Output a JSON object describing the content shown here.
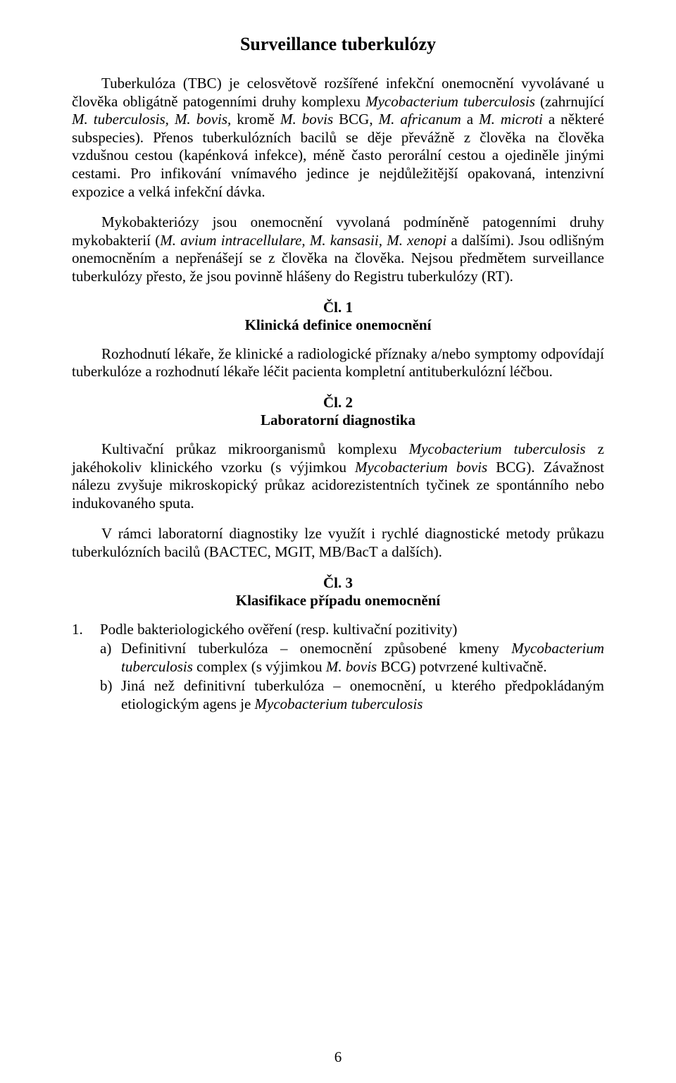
{
  "title": "Surveillance tuberkulózy",
  "paragraphs": {
    "p1_a": "Tuberkulóza (TBC) je celosvětově rozšířené infekční onemocnění vyvolávané u člověka obligátně patogenními druhy komplexu ",
    "p1_i1": "Mycobacterium tuberculosis",
    "p1_b": " (zahrnující ",
    "p1_i2": "M. tuberculosis, M. bovis,",
    "p1_c": " kromě ",
    "p1_i3": "M. bovis",
    "p1_d": " BCG, ",
    "p1_i4": "M. africanum",
    "p1_e": " a ",
    "p1_i5": "M. microti",
    "p1_f": " a některé subspecies). Přenos tuberkulózních bacilů se děje převážně z člověka na člověka vzdušnou cestou (kapénková infekce), méně často perorální cestou a ojediněle jinými cestami. Pro infikování vnímavého jedince je nejdůležitější opakovaná, intenzivní expozice a velká infekční dávka.",
    "p2_a": "Mykobakteriózy jsou onemocnění vyvolaná podmíněně patogenními druhy mykobakterií (",
    "p2_i1": "M. avium intracellulare, M. kansasii, M. xenopi",
    "p2_b": " a dalšími). Jsou odlišným onemocněním a nepřenášejí se z člověka na člověka. Nejsou předmětem surveillance tuberkulózy přesto, že jsou povinně hlášeny do Registru tuberkulózy (RT).",
    "p3": "Rozhodnutí lékaře, že klinické a radiologické příznaky a/nebo symptomy odpovídají tuberkulóze a rozhodnutí lékaře léčit pacienta kompletní antituberkulózní léčbou.",
    "p4_a": "Kultivační průkaz mikroorganismů komplexu ",
    "p4_i1": "Mycobacterium tuberculosis",
    "p4_b": " z jakéhokoliv klinického vzorku (s výjimkou ",
    "p4_i2": "Mycobacterium bovis",
    "p4_c": " BCG). Závažnost nálezu zvyšuje mikroskopický průkaz acidorezistentních tyčinek ze spontánního nebo indukovaného sputa.",
    "p5": "V rámci laboratorní diagnostiky lze využít i rychlé diagnostické metody průkazu tuberkulózních bacilů (BACTEC, MGIT, MB/BacT a dalších)."
  },
  "articles": {
    "a1_num": "Čl. 1",
    "a1_title": "Klinická definice onemocnění",
    "a2_num": "Čl. 2",
    "a2_title": "Laboratorní diagnostika",
    "a3_num": "Čl. 3",
    "a3_title": "Klasifikace případu onemocnění"
  },
  "list": {
    "l1_num": "1.",
    "l1_text": "Podle bakteriologického ověření (resp. kultivační pozitivity)",
    "l1a_letter": "a)",
    "l1a_a": "Definitivní tuberkulóza – onemocnění způsobené kmeny ",
    "l1a_i1": "Mycobacterium tuberculosis",
    "l1a_b": " complex (s výjimkou ",
    "l1a_i2": "M. bovis",
    "l1a_c": " BCG) potvrzené kultivačně.",
    "l1b_letter": "b)",
    "l1b_a": "Jiná než definitivní tuberkulóza – onemocnění, u kterého předpokládaným etiologickým agens je ",
    "l1b_i1": "Mycobacterium tuberculosis"
  },
  "page_number": "6"
}
